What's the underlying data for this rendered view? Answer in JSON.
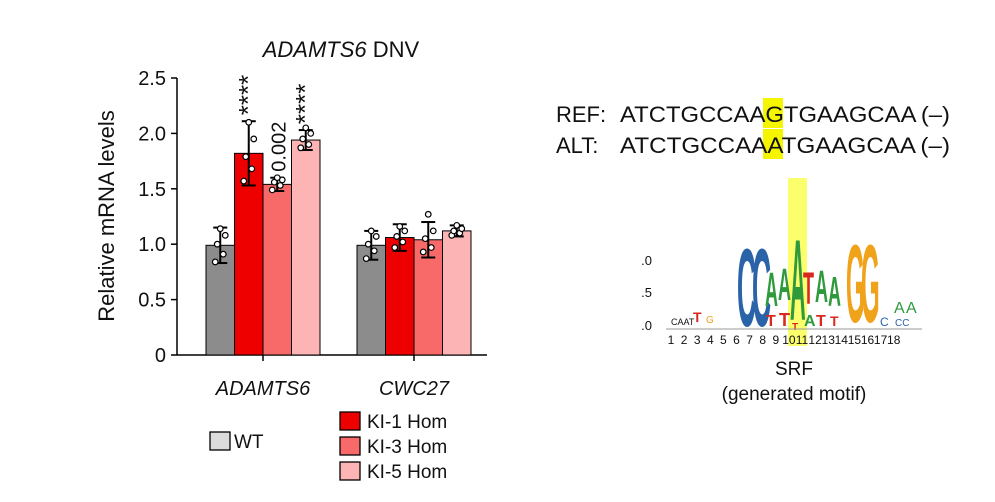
{
  "chart_data": [
    {
      "type": "bar",
      "title_gene": "ADAMTS6",
      "title_suffix": " DNV",
      "ylabel": "Relative mRNA levels",
      "ylim": [
        0,
        2.5
      ],
      "yticks": [
        "0",
        "0.5",
        "1.0",
        "1.5",
        "2.0",
        "2.5"
      ],
      "categories": [
        "ADAMTS6",
        "CWC27"
      ],
      "series": [
        {
          "name": "WT",
          "color": "#8c8c8c",
          "values": [
            0.99,
            0.99
          ],
          "errors": [
            0.16,
            0.13
          ],
          "points": [
            [
              0.84,
              0.91,
              1.0,
              1.08,
              1.14
            ],
            [
              0.87,
              0.94,
              1.0,
              1.07,
              1.12
            ]
          ]
        },
        {
          "name": "KI-1 Hom",
          "color": "#ee0000",
          "values": [
            1.82,
            1.06
          ],
          "errors": [
            0.29,
            0.12
          ],
          "points": [
            [
              1.57,
              1.68,
              1.79,
              1.95,
              2.1
            ],
            [
              0.97,
              1.02,
              1.07,
              1.12,
              1.16
            ]
          ]
        },
        {
          "name": "KI-3 Hom",
          "color": "#f86a6a",
          "values": [
            1.54,
            1.04
          ],
          "errors": [
            0.06,
            0.16
          ],
          "points": [
            [
              1.49,
              1.53,
              1.56,
              1.58,
              1.6
            ],
            [
              0.93,
              0.97,
              1.05,
              1.12,
              1.27
            ]
          ]
        },
        {
          "name": "KI-5 Hom",
          "color": "#fdb4b4",
          "values": [
            1.94,
            1.12
          ],
          "errors": [
            0.09,
            0.05
          ],
          "points": [
            [
              1.87,
              1.9,
              1.95,
              2.0,
              2.05
            ],
            [
              1.08,
              1.1,
              1.12,
              1.14,
              1.17
            ]
          ]
        }
      ],
      "significance": [
        {
          "category": "ADAMTS6",
          "series": "KI-1 Hom",
          "label": "****"
        },
        {
          "category": "ADAMTS6",
          "series": "KI-3 Hom",
          "label": "0.002"
        },
        {
          "category": "ADAMTS6",
          "series": "KI-5 Hom",
          "label": "****"
        }
      ]
    },
    {
      "type": "sequence_logo",
      "name": "SRF",
      "subtitle": "(generated motif)",
      "yticks": [
        ".0",
        ".5",
        ".0"
      ],
      "positions": [
        "1",
        "2",
        "3",
        "4",
        "5",
        "6",
        "7",
        "8",
        "9",
        "10",
        "11",
        "12",
        "13",
        "14",
        "15",
        "16",
        "17",
        "18"
      ],
      "highlight_position": "10",
      "highlight_color": "#fbff52"
    }
  ],
  "sequences": {
    "ref_label": "REF:",
    "ref_before": "ATCTGCCAA",
    "ref_variant": "G",
    "ref_after": "TGAAGCAA",
    "alt_label": "ALT:",
    "alt_before": "ATCTGCCAA",
    "alt_variant": "A",
    "alt_after": "TGAAGCAA",
    "strand": "(–)",
    "highlight_color": "#f5f500"
  },
  "legend": {
    "wt_label": "WT",
    "ki1_label": "KI-1 Hom",
    "ki3_label": "KI-3 Hom",
    "ki5_label": "KI-5 Hom"
  }
}
